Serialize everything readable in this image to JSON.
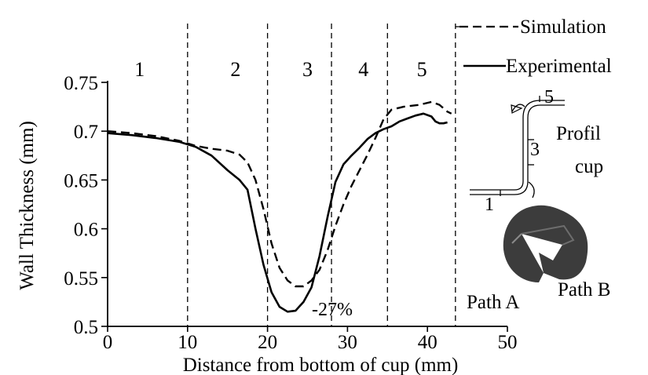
{
  "chart_data": {
    "type": "line",
    "xlabel": "Distance from bottom of cup (mm)",
    "ylabel": "Wall Thickness (mm)",
    "xlim": [
      0,
      50
    ],
    "ylim": [
      0.5,
      0.75
    ],
    "x_ticks": [
      "0",
      "10",
      "20",
      "30",
      "40",
      "50"
    ],
    "y_ticks": [
      "0.5",
      "0.55",
      "0.6",
      "0.65",
      "0.7",
      "0.75"
    ],
    "zone_boundaries": [
      10,
      20,
      28,
      35,
      43.5
    ],
    "zones": [
      {
        "label": "1",
        "x": 4
      },
      {
        "label": "2",
        "x": 16
      },
      {
        "label": "3",
        "x": 25
      },
      {
        "label": "4",
        "x": 32
      },
      {
        "label": "5",
        "x": 39.3
      }
    ],
    "series": [
      {
        "name": "Simulation",
        "style": "dashed",
        "x": [
          0,
          3,
          6,
          9,
          11,
          13,
          15,
          16.5,
          17.5,
          18.5,
          19.5,
          20.5,
          21.5,
          22.5,
          23.5,
          24.5,
          25.5,
          26.5,
          27.5,
          28.5,
          29.5,
          30.5,
          31.5,
          32.5,
          33.5,
          34.5,
          35.5,
          37,
          39,
          40.5,
          41.5,
          42.5,
          43
        ],
        "y": [
          0.7,
          0.698,
          0.695,
          0.69,
          0.685,
          0.682,
          0.68,
          0.676,
          0.668,
          0.65,
          0.62,
          0.585,
          0.56,
          0.547,
          0.541,
          0.541,
          0.547,
          0.558,
          0.578,
          0.603,
          0.625,
          0.644,
          0.66,
          0.676,
          0.693,
          0.712,
          0.722,
          0.725,
          0.727,
          0.73,
          0.727,
          0.72,
          0.718
        ]
      },
      {
        "name": "Experimental",
        "style": "solid",
        "x": [
          0,
          3,
          6,
          9,
          11,
          13,
          15,
          16.5,
          17.5,
          18.5,
          19.5,
          20.5,
          21.5,
          22.5,
          23.5,
          24.5,
          25.5,
          26.5,
          27.5,
          28.5,
          29.5,
          30.5,
          31.5,
          32.5,
          33.5,
          34.5,
          35.5,
          36.5,
          37.5,
          38.5,
          39.5,
          40.5,
          41,
          41.5,
          42,
          42.5
        ],
        "y": [
          0.698,
          0.696,
          0.693,
          0.689,
          0.684,
          0.675,
          0.66,
          0.65,
          0.64,
          0.6,
          0.563,
          0.535,
          0.52,
          0.515,
          0.516,
          0.525,
          0.54,
          0.572,
          0.612,
          0.648,
          0.666,
          0.675,
          0.683,
          0.692,
          0.698,
          0.702,
          0.705,
          0.71,
          0.713,
          0.716,
          0.718,
          0.715,
          0.71,
          0.708,
          0.708,
          0.709
        ]
      }
    ],
    "annotations": [
      "-27%"
    ]
  },
  "inset": {
    "title_lines": [
      "Profil",
      "cup"
    ],
    "profile_labels": [
      "1",
      "3",
      "5"
    ],
    "path_a": "Path A",
    "path_b": "Path B"
  }
}
